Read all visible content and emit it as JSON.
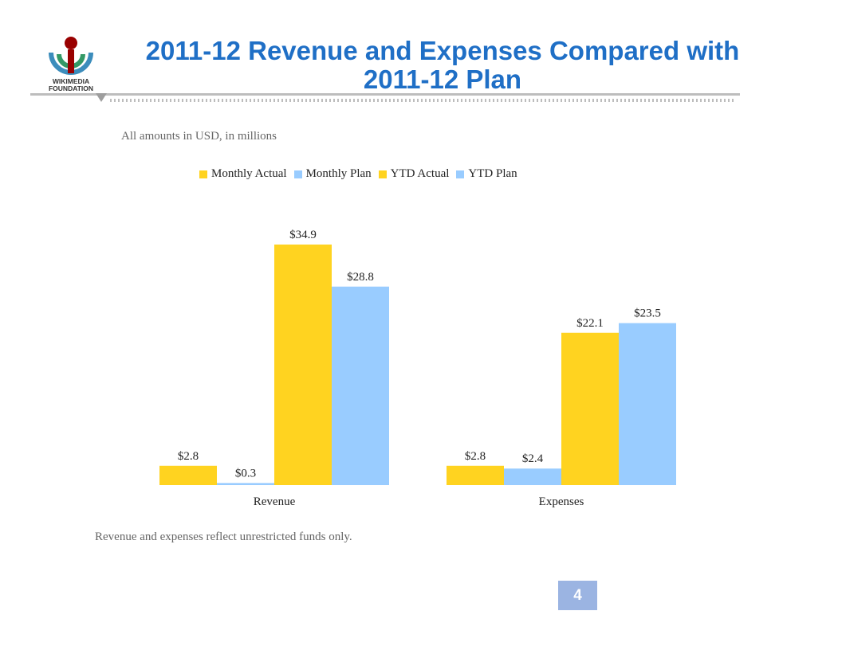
{
  "header": {
    "title": "2011-12 Revenue and Expenses Compared with 2011-12 Plan",
    "logo_text_line1": "WIKIMEDIA",
    "logo_text_line2": "FOUNDATION"
  },
  "subtitle": "All amounts in USD, in millions",
  "footnote": "Revenue and expenses reflect unrestricted funds only.",
  "page_number": "4",
  "colors": {
    "actual": "#ffd320",
    "plan": "#99ccff",
    "title": "#1f6fc6"
  },
  "chart_data": {
    "type": "bar",
    "categories": [
      "Revenue",
      "Expenses"
    ],
    "series": [
      {
        "name": "Monthly Actual",
        "values": [
          2.8,
          2.8
        ],
        "labels": [
          "$2.8",
          "$2.8"
        ],
        "color": "#ffd320"
      },
      {
        "name": "Monthly Plan",
        "values": [
          0.3,
          2.4
        ],
        "labels": [
          "$0.3",
          "$2.4"
        ],
        "color": "#99ccff"
      },
      {
        "name": "YTD Actual",
        "values": [
          34.9,
          22.1
        ],
        "labels": [
          "$34.9",
          "$22.1"
        ],
        "color": "#ffd320"
      },
      {
        "name": "YTD Plan",
        "values": [
          28.8,
          23.5
        ],
        "labels": [
          "$28.8",
          "$23.5"
        ],
        "color": "#99ccff"
      }
    ],
    "legend_position": "top",
    "grid": false
  }
}
